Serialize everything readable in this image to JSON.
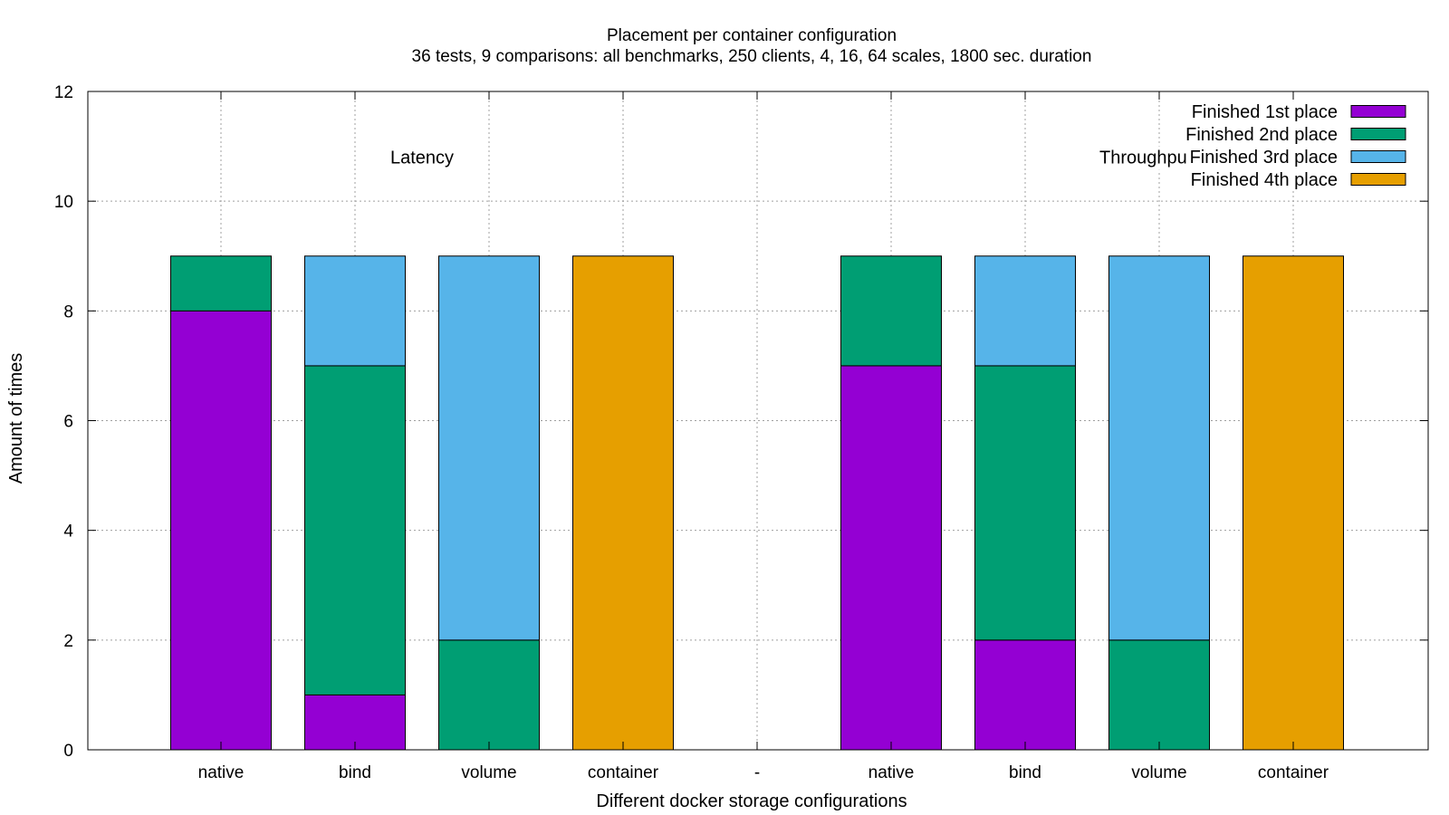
{
  "chart_data": {
    "type": "bar",
    "stacked": true,
    "title": "Placement per container configuration",
    "subtitle": "36 tests, 9 comparisons: all benchmarks, 250 clients, 4, 16, 64 scales, 1800 sec. duration",
    "xlabel": "Different docker storage configurations",
    "ylabel": "Amount of times",
    "ylim": [
      0,
      12
    ],
    "yticks": [
      0,
      2,
      4,
      6,
      8,
      10,
      12
    ],
    "grid": true,
    "legend_position": "top-right",
    "categories": [
      "native",
      "bind",
      "volume",
      "container",
      "-",
      "native",
      "bind",
      "volume",
      "container"
    ],
    "series": [
      {
        "name": "Finished 1st place",
        "color": "#9400d3",
        "values": [
          8,
          1,
          0,
          0,
          0,
          7,
          2,
          0,
          0
        ]
      },
      {
        "name": "Finished 2nd place",
        "color": "#009e73",
        "values": [
          1,
          6,
          2,
          0,
          0,
          2,
          5,
          2,
          0
        ]
      },
      {
        "name": "Finished 3rd place",
        "color": "#56b4e9",
        "values": [
          0,
          2,
          7,
          0,
          0,
          0,
          2,
          7,
          0
        ]
      },
      {
        "name": "Finished 4th place",
        "color": "#e69f00",
        "values": [
          0,
          0,
          0,
          9,
          0,
          0,
          0,
          0,
          9
        ]
      }
    ],
    "annotations": [
      {
        "text": "Latency",
        "x_category_index": 1.5,
        "y": 10.8
      },
      {
        "text": "Throughput",
        "x_category_index": 6.9,
        "y": 10.8
      }
    ]
  }
}
